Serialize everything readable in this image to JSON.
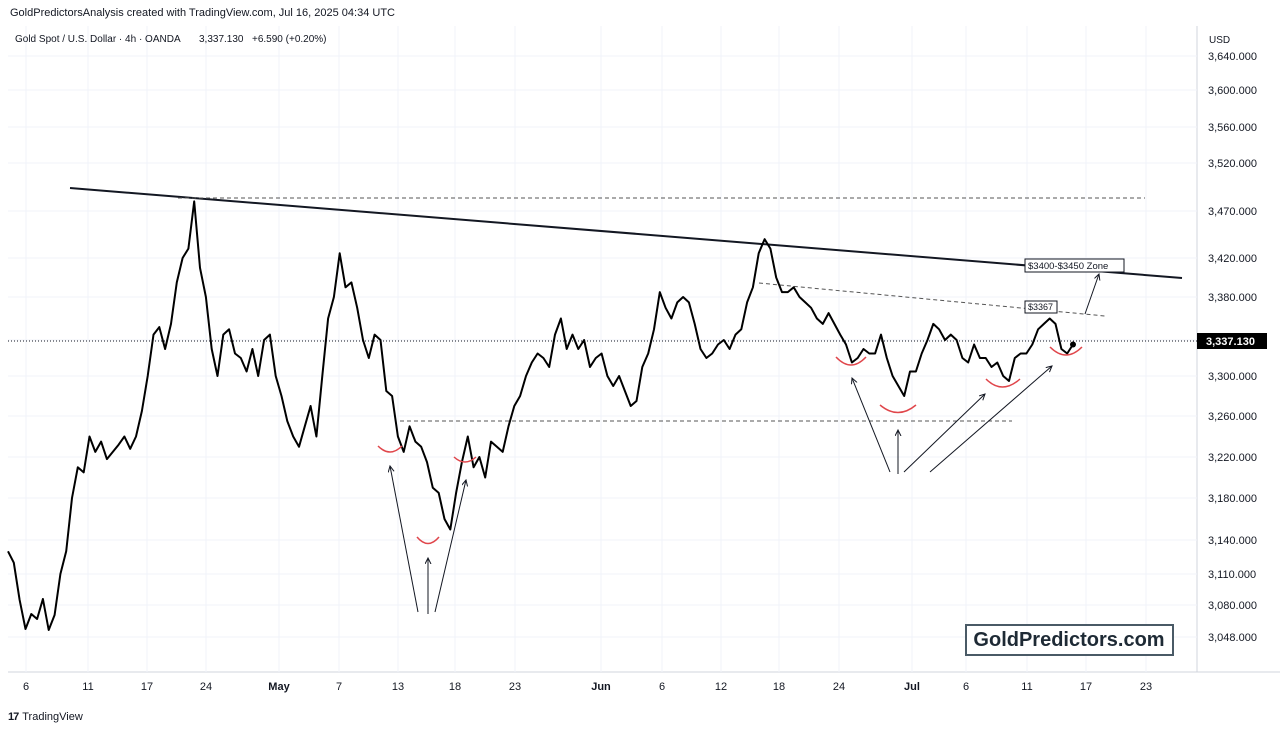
{
  "header": {
    "credit": "GoldPredictorsAnalysis created with TradingView.com, Jul 16, 2025 04:34 UTC"
  },
  "symbol_bar": {
    "name": "Gold Spot / U.S. Dollar · 4h · OANDA",
    "price": "3,337.130",
    "change": "+6.590 (+0.20%)"
  },
  "currency": "USD",
  "last_price_tag": "3,337.130",
  "watermark": "GoldPredictors.com",
  "footer": {
    "brand": "TradingView"
  },
  "annotations": {
    "zone_label": "$3400-$3450 Zone",
    "level_label": "$3367"
  },
  "colors": {
    "price_line": "#000000",
    "cup_arcs": "#e0464b",
    "grid": "#f0f3fa",
    "axis_text": "#131722",
    "price_tag_bg": "#000000"
  },
  "chart_data": {
    "type": "line",
    "title": "Gold Spot / U.S. Dollar · 4h · OANDA",
    "y_ticks": [
      "3,048.000",
      "3,080.000",
      "3,110.000",
      "3,140.000",
      "3,180.000",
      "3,220.000",
      "3,260.000",
      "3,300.000",
      "3,340.000",
      "3,380.000",
      "3,420.000",
      "3,470.000",
      "3,520.000",
      "3,560.000",
      "3,600.000",
      "3,640.000"
    ],
    "x_ticks": [
      "6",
      "11",
      "17",
      "24",
      "May",
      "7",
      "13",
      "18",
      "23",
      "Jun",
      "6",
      "12",
      "18",
      "24",
      "Jul",
      "6",
      "11",
      "17",
      "23"
    ],
    "ylabel": "USD",
    "series": [
      {
        "values": [
          3130,
          3120,
          3085,
          3040,
          3025,
          3030,
          3010,
          3055,
          3070,
          3110,
          3130,
          3180,
          3210,
          3205,
          3240,
          3225,
          3235,
          3218,
          3225,
          3232,
          3240,
          3228,
          3240,
          3265,
          3300,
          3345,
          3352,
          3330,
          3355,
          3395,
          3420,
          3430,
          3480,
          3410,
          3380,
          3330,
          3300,
          3345,
          3350,
          3325,
          3320,
          3305,
          3330,
          3300,
          3340,
          3345,
          3300,
          3280,
          3255,
          3240,
          3230,
          3250,
          3270,
          3240,
          3300,
          3360,
          3380,
          3425,
          3390,
          3395,
          3370,
          3340,
          3320,
          3345,
          3340,
          3285,
          3280,
          3240,
          3225,
          3250,
          3235,
          3230,
          3215,
          3190,
          3185,
          3160,
          3150,
          3185,
          3215,
          3240,
          3210,
          3220,
          3200,
          3235,
          3230,
          3225,
          3250,
          3270,
          3280,
          3300,
          3315,
          3325,
          3320,
          3310,
          3345,
          3360,
          3330,
          3345,
          3330,
          3340,
          3310,
          3320,
          3325,
          3300,
          3290,
          3300,
          3285,
          3270,
          3275,
          3310,
          3325,
          3350,
          3385,
          3370,
          3360,
          3375,
          3380,
          3375,
          3355,
          3330,
          3320,
          3325,
          3335,
          3340,
          3330,
          3345,
          3350,
          3375,
          3390,
          3425,
          3440,
          3430,
          3400,
          3385,
          3385,
          3390,
          3380,
          3375,
          3370,
          3360,
          3355,
          3365,
          3355,
          3345,
          3335,
          3315,
          3320,
          3330,
          3325,
          3325,
          3345,
          3320,
          3300,
          3290,
          3280,
          3305,
          3305,
          3325,
          3340,
          3355,
          3350,
          3340,
          3345,
          3340,
          3320,
          3315,
          3335,
          3320,
          3320,
          3310,
          3315,
          3300,
          3295,
          3320,
          3325,
          3325,
          3335,
          3350,
          3355,
          3360,
          3355,
          3330,
          3325,
          3335
        ],
        "note_levels": {
          "resistance_start": 3500,
          "resistance_end": 3405,
          "neckline_high": 3485,
          "support": 3255
        }
      }
    ]
  }
}
